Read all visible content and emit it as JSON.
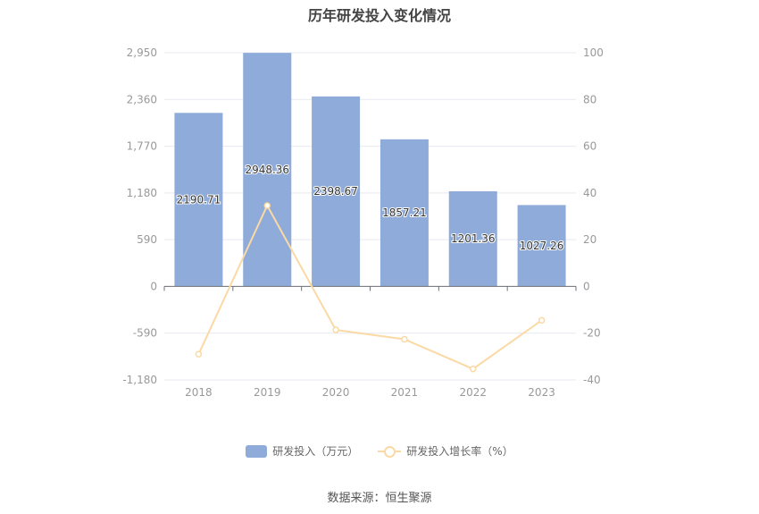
{
  "chart_data": {
    "type": "bar",
    "title": "历年研发投入变化情况",
    "categories": [
      "2018",
      "2019",
      "2020",
      "2021",
      "2022",
      "2023"
    ],
    "series": [
      {
        "name": "研发投入（万元）",
        "type": "bar",
        "axis": "left",
        "color": "#8eabd9",
        "values": [
          2190.71,
          2948.36,
          2398.67,
          1857.21,
          1201.36,
          1027.26
        ],
        "labels": [
          "2190.71",
          "2948.36",
          "2398.67",
          "1857.21",
          "1201.36",
          "1027.26"
        ]
      },
      {
        "name": "研发投入增长率（%）",
        "type": "line",
        "axis": "right",
        "color": "#fbd9a4",
        "values": [
          -29.0,
          34.6,
          -18.6,
          -22.6,
          -35.3,
          -14.5
        ]
      }
    ],
    "y_left": {
      "ylim": [
        -1180,
        2950
      ],
      "ticks": [
        2950,
        2360,
        1770,
        1180,
        590,
        0,
        -590,
        -1180
      ],
      "tick_labels": [
        "2,950",
        "2,360",
        "1,770",
        "1,180",
        "590",
        "0",
        "-590",
        "-1,180"
      ]
    },
    "y_right": {
      "ylim": [
        -40,
        100
      ],
      "ticks": [
        100,
        80,
        60,
        40,
        20,
        0,
        -20,
        -40
      ],
      "tick_labels": [
        "100",
        "80",
        "60",
        "40",
        "20",
        "0",
        "-20",
        "-40"
      ]
    },
    "grid": true,
    "legend_position": "bottom-center"
  },
  "source": "数据来源：恒生聚源"
}
